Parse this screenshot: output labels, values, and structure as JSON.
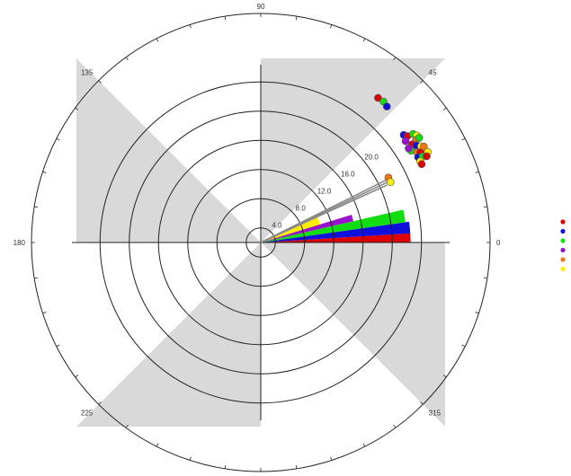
{
  "chart_data": {
    "type": "polar",
    "title": "",
    "angle_ticks": [
      "0",
      "45",
      "90",
      "135",
      "180",
      "225",
      "270",
      "315"
    ],
    "radial_ticks": [
      "4.0",
      "8.0",
      "12.0",
      "16.0",
      "20.0"
    ],
    "radial_range": [
      0,
      24
    ],
    "grid": true,
    "legend": {
      "placement": "right",
      "entries": [
        "",
        "",
        "",
        "",
        "",
        ""
      ]
    },
    "series_colors": [
      "#dd0000",
      "#1010dd",
      "#11dd11",
      "#9911cc",
      "#ee7711",
      "#ffee00"
    ],
    "shaded_sectors_deg": [
      [
        45,
        90
      ],
      [
        135,
        180
      ],
      [
        225,
        270
      ],
      [
        315,
        360
      ]
    ],
    "wedges": [
      {
        "color": "#dd0000",
        "from_deg": 0,
        "to_deg": 3.5,
        "radius": 20.5
      },
      {
        "color": "#1010dd",
        "from_deg": 3.5,
        "to_deg": 8,
        "radius": 20.5
      },
      {
        "color": "#11dd11",
        "from_deg": 8,
        "to_deg": 13,
        "radius": 20.0
      },
      {
        "color": "#9911cc",
        "from_deg": 13,
        "to_deg": 17,
        "radius": 13.0
      },
      {
        "color": "#ffee00",
        "from_deg": 17,
        "to_deg": 24.5,
        "radius": 8.5
      }
    ],
    "lines": [
      {
        "angle_deg": 26.5,
        "radius": 19.6
      },
      {
        "angle_deg": 25.5,
        "radius": 19.6
      },
      {
        "angle_deg": 24.5,
        "radius": 19.0
      }
    ],
    "points": [
      {
        "series": 0,
        "angle_deg": 51.0,
        "r": 25.5
      },
      {
        "series": 2,
        "angle_deg": 49.0,
        "r": 25.6
      },
      {
        "series": 1,
        "angle_deg": 47.2,
        "r": 25.4
      },
      {
        "series": 1,
        "angle_deg": 37.0,
        "r": 24.5
      },
      {
        "series": 0,
        "angle_deg": 36.0,
        "r": 24.8
      },
      {
        "series": 2,
        "angle_deg": 35.5,
        "r": 25.6
      },
      {
        "series": 5,
        "angle_deg": 34.5,
        "r": 25.9
      },
      {
        "series": 4,
        "angle_deg": 33.5,
        "r": 25.5
      },
      {
        "series": 3,
        "angle_deg": 35.0,
        "r": 24.2
      },
      {
        "series": 0,
        "angle_deg": 33.0,
        "r": 24.7
      },
      {
        "series": 1,
        "angle_deg": 32.0,
        "r": 25.1
      },
      {
        "series": 2,
        "angle_deg": 31.5,
        "r": 24.1
      },
      {
        "series": 5,
        "angle_deg": 31.0,
        "r": 25.6
      },
      {
        "series": 4,
        "angle_deg": 30.0,
        "r": 24.7
      },
      {
        "series": 0,
        "angle_deg": 29.5,
        "r": 25.1
      },
      {
        "series": 1,
        "angle_deg": 28.5,
        "r": 24.5
      },
      {
        "series": 2,
        "angle_deg": 28.0,
        "r": 25.1
      },
      {
        "series": 5,
        "angle_deg": 27.0,
        "r": 24.5
      },
      {
        "series": 0,
        "angle_deg": 26.0,
        "r": 24.5
      },
      {
        "series": 4,
        "angle_deg": 30.5,
        "r": 25.9
      },
      {
        "series": 5,
        "angle_deg": 28.5,
        "r": 26.0
      },
      {
        "series": 3,
        "angle_deg": 32.5,
        "r": 24.0
      },
      {
        "series": 0,
        "angle_deg": 27.5,
        "r": 25.6
      },
      {
        "series": 2,
        "angle_deg": 33.5,
        "r": 26.0
      },
      {
        "series": 4,
        "angle_deg": 27.0,
        "r": 19.6
      },
      {
        "series": 5,
        "angle_deg": 25.0,
        "r": 19.6
      }
    ]
  }
}
